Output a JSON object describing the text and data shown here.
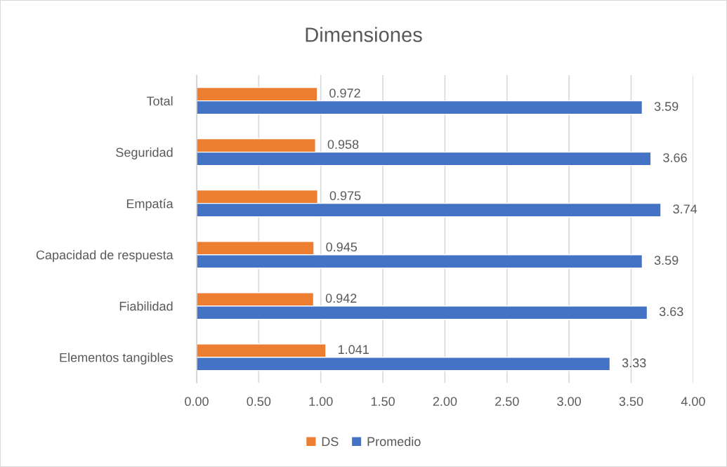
{
  "chart_data": {
    "type": "bar",
    "orientation": "horizontal",
    "title": "Dimensiones",
    "categories": [
      "Total",
      "Seguridad",
      "Empatía",
      "Capacidad de respuesta",
      "Fiabilidad",
      "Elementos tangibles"
    ],
    "series": [
      {
        "name": "DS",
        "color": "#ed7d31",
        "values": [
          0.972,
          0.958,
          0.975,
          0.945,
          0.942,
          1.041
        ]
      },
      {
        "name": "Promedio",
        "color": "#4472c4",
        "values": [
          3.59,
          3.66,
          3.74,
          3.59,
          3.63,
          3.33
        ]
      }
    ],
    "xlim": [
      0,
      4
    ],
    "xticks": [
      {
        "value": 0,
        "label": "0.00"
      },
      {
        "value": 0.5,
        "label": "0.50"
      },
      {
        "value": 1,
        "label": "1.00"
      },
      {
        "value": 1.5,
        "label": "1.50"
      },
      {
        "value": 2,
        "label": "2.00"
      },
      {
        "value": 2.5,
        "label": "2.50"
      },
      {
        "value": 3,
        "label": "3.00"
      },
      {
        "value": 3.5,
        "label": "3.50"
      },
      {
        "value": 4,
        "label": "4.00"
      }
    ],
    "grid": "x",
    "legend": "bottom",
    "data_labels": true
  }
}
